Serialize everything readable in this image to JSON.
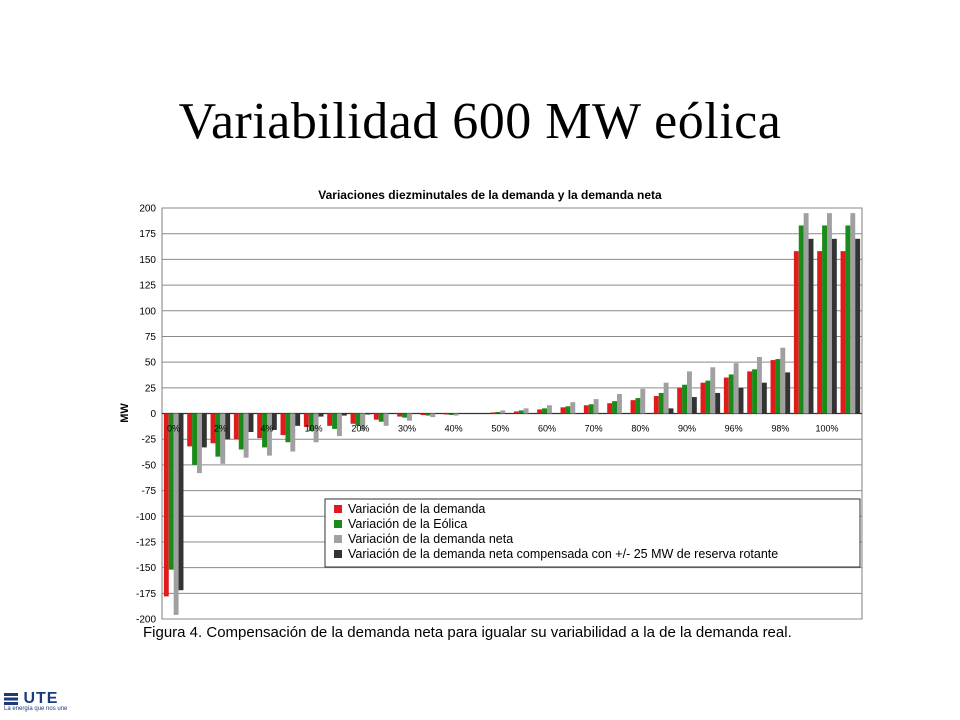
{
  "slide": {
    "title": "Variabilidad 600 MW eólica",
    "caption": "Figura 4. Compensación de la demanda neta para igualar su variabilidad a la de la demanda real.",
    "logo_text": "UTE",
    "logo_tagline": "La energía que nos une"
  },
  "chart_data": {
    "type": "bar",
    "title": "Variaciones diezminutales de la demanda y la demanda neta",
    "ylabel": "MW",
    "xlabel": "",
    "ylim": [
      -200,
      200
    ],
    "yticks": [
      200,
      175,
      150,
      125,
      100,
      75,
      50,
      25,
      0,
      -25,
      -50,
      -75,
      -100,
      -125,
      -150,
      -175,
      -200
    ],
    "grid": true,
    "legend_position": "bottom-right",
    "x_tick_labels": [
      "0%",
      "2%",
      "4%",
      "10%",
      "20%",
      "30%",
      "40%",
      "50%",
      "60%",
      "70%",
      "80%",
      "90%",
      "96%",
      "98%",
      "100%"
    ],
    "categories_count": 30,
    "series": [
      {
        "name": "Variación de la demanda",
        "color": "#e01b1b",
        "values": [
          -178,
          -32,
          -29,
          -25,
          -24,
          -21,
          -13,
          -12,
          -10,
          -6,
          -3,
          -1.5,
          -1,
          0,
          1,
          2,
          4,
          6,
          8,
          10,
          13,
          17,
          25,
          30,
          35,
          41,
          52,
          158,
          158,
          158
        ]
      },
      {
        "name": "Variación de la Eólica",
        "color": "#1a8a1a",
        "values": [
          -152,
          -50,
          -42,
          -35,
          -33,
          -28,
          -17,
          -15,
          -12,
          -8,
          -4,
          -2,
          -1.5,
          0,
          1.5,
          3,
          5,
          7,
          9,
          12,
          15,
          20,
          28,
          32,
          38,
          43,
          53,
          183,
          183,
          183
        ]
      },
      {
        "name": "Variación de la demanda neta",
        "color": "#a0a0a0",
        "values": [
          -196,
          -58,
          -49,
          -43,
          -41,
          -37,
          -28,
          -22,
          -17,
          -12,
          -7,
          -3.5,
          -2,
          0,
          3,
          5,
          8,
          11,
          14,
          19,
          24,
          30,
          41,
          45,
          49,
          55,
          64,
          195,
          195,
          195
        ]
      },
      {
        "name": "Variación de la demanda neta compensada con +/- 25 MW de reserva rotante",
        "color": "#333333",
        "values": [
          -172,
          -33,
          -25,
          -18,
          -16,
          -12,
          -3,
          -2,
          -1,
          0,
          0,
          0,
          0,
          0,
          0,
          0,
          0,
          0,
          0,
          0,
          0,
          5,
          16,
          20,
          25,
          30,
          40,
          170,
          170,
          170
        ]
      }
    ]
  }
}
